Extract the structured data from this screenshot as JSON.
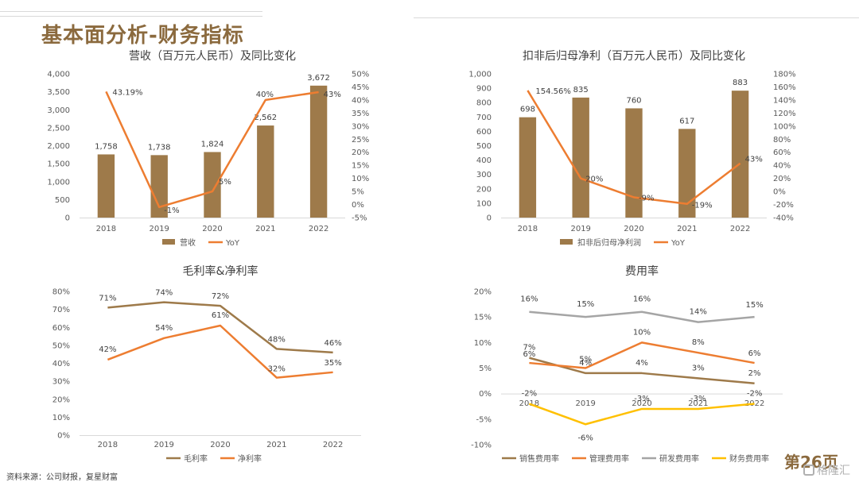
{
  "page": {
    "title": "基本面分析-财务指标",
    "source": "资料来源：公司财报，复星财富",
    "page_number": "第26页",
    "watermark": "格隆汇",
    "watermark_icon": "glh-logo-icon"
  },
  "chart_data": [
    {
      "id": "revenue",
      "type": "bar+line",
      "title": "营收（百万元人民币）及同比变化",
      "categories": [
        "2018",
        "2019",
        "2020",
        "2021",
        "2022"
      ],
      "bar_series": {
        "name": "营收",
        "values": [
          1758,
          1738,
          1824,
          2562,
          3672
        ],
        "labels": [
          "1,758",
          "1,738",
          "1,824",
          "2,562",
          "3,672"
        ],
        "color": "#9E7A4A"
      },
      "line_series": {
        "name": "YoY",
        "values": [
          43.19,
          -1,
          5,
          40,
          43
        ],
        "labels": [
          "43.19%",
          "-1%",
          "5%",
          "40%",
          "43%"
        ],
        "color": "#ED7D31"
      },
      "y_left": {
        "min": 0,
        "max": 4000,
        "ticks": [
          0,
          500,
          1000,
          1500,
          2000,
          2500,
          3000,
          3500,
          4000
        ],
        "tick_labels": [
          "0",
          "500",
          "1,000",
          "1,500",
          "2,000",
          "2,500",
          "3,000",
          "3,500",
          "4,000"
        ]
      },
      "y_right": {
        "min": -5,
        "max": 50,
        "ticks": [
          -5,
          0,
          5,
          10,
          15,
          20,
          25,
          30,
          35,
          40,
          45,
          50
        ],
        "tick_labels": [
          "-5%",
          "0%",
          "5%",
          "10%",
          "15%",
          "20%",
          "25%",
          "30%",
          "35%",
          "40%",
          "45%",
          "50%"
        ]
      },
      "legend": [
        {
          "name": "营收",
          "kind": "bar",
          "color": "#9E7A4A"
        },
        {
          "name": "YoY",
          "kind": "line",
          "color": "#ED7D31"
        }
      ],
      "legend_position": "bottom",
      "grid": false
    },
    {
      "id": "net_profit",
      "type": "bar+line",
      "title": "扣非后归母净利（百万元人民币）及同比变化",
      "categories": [
        "2018",
        "2019",
        "2020",
        "2021",
        "2022"
      ],
      "bar_series": {
        "name": "扣非后归母净利润",
        "values": [
          698,
          835,
          760,
          617,
          883
        ],
        "labels": [
          "698",
          "835",
          "760",
          "617",
          "883"
        ],
        "color": "#9E7A4A"
      },
      "line_series": {
        "name": "YoY",
        "values": [
          154.56,
          20,
          -9,
          -19,
          43
        ],
        "labels": [
          "154.56%",
          "20%",
          "-9%",
          "-19%",
          "43%"
        ],
        "color": "#ED7D31"
      },
      "y_left": {
        "min": 0,
        "max": 1000,
        "ticks": [
          0,
          100,
          200,
          300,
          400,
          500,
          600,
          700,
          800,
          900,
          1000
        ],
        "tick_labels": [
          "0",
          "100",
          "200",
          "300",
          "400",
          "500",
          "600",
          "700",
          "800",
          "900",
          "1,000"
        ]
      },
      "y_right": {
        "min": -40,
        "max": 180,
        "ticks": [
          -40,
          -20,
          0,
          20,
          40,
          60,
          80,
          100,
          120,
          140,
          160,
          180
        ],
        "tick_labels": [
          "-40%",
          "-20%",
          "0%",
          "20%",
          "40%",
          "60%",
          "80%",
          "100%",
          "120%",
          "140%",
          "160%",
          "180%"
        ]
      },
      "legend": [
        {
          "name": "扣非后归母净利润",
          "kind": "bar",
          "color": "#9E7A4A"
        },
        {
          "name": "YoY",
          "kind": "line",
          "color": "#ED7D31"
        }
      ],
      "legend_position": "bottom",
      "grid": false
    },
    {
      "id": "margins",
      "type": "line",
      "title": "毛利率&净利率",
      "categories": [
        "2018",
        "2019",
        "2020",
        "2021",
        "2022"
      ],
      "series": [
        {
          "name": "毛利率",
          "values": [
            71,
            74,
            72,
            48,
            46
          ],
          "labels": [
            "71%",
            "74%",
            "72%",
            "48%",
            "46%"
          ],
          "color": "#9E7A4A"
        },
        {
          "name": "净利率",
          "values": [
            42,
            54,
            61,
            32,
            35
          ],
          "labels": [
            "42%",
            "54%",
            "61%",
            "32%",
            "35%"
          ],
          "color": "#ED7D31"
        }
      ],
      "y_axis": {
        "min": 0,
        "max": 80,
        "ticks": [
          0,
          10,
          20,
          30,
          40,
          50,
          60,
          70,
          80
        ],
        "tick_labels": [
          "0%",
          "10%",
          "20%",
          "30%",
          "40%",
          "50%",
          "60%",
          "70%",
          "80%"
        ]
      },
      "legend_position": "bottom",
      "grid": false
    },
    {
      "id": "expense_ratio",
      "type": "line",
      "title": "费用率",
      "categories": [
        "2018",
        "2019",
        "2020",
        "2021",
        "2022"
      ],
      "series": [
        {
          "name": "销售费用率",
          "values": [
            7,
            4,
            4,
            3,
            2
          ],
          "labels": [
            "7%",
            "4%",
            "4%",
            "3%",
            "2%"
          ],
          "color": "#9E7A4A"
        },
        {
          "name": "管理费用率",
          "values": [
            6,
            5,
            10,
            8,
            6
          ],
          "labels": [
            "6%",
            "5%",
            "10%",
            "8%",
            "6%"
          ],
          "color": "#ED7D31"
        },
        {
          "name": "研发费用率",
          "values": [
            16,
            15,
            16,
            14,
            15
          ],
          "labels": [
            "16%",
            "15%",
            "16%",
            "14%",
            "15%"
          ],
          "color": "#A5A5A5"
        },
        {
          "name": "财务费用率",
          "values": [
            -2,
            -6,
            -3,
            -3,
            -2
          ],
          "labels": [
            "-2%",
            "-6%",
            "-3%",
            "-3%",
            "-2%"
          ],
          "color": "#FFC000"
        }
      ],
      "y_axis": {
        "min": -10,
        "max": 20,
        "ticks": [
          -10,
          -5,
          0,
          5,
          10,
          15,
          20
        ],
        "tick_labels": [
          "-10%",
          "-5%",
          "0%",
          "5%",
          "10%",
          "15%",
          "20%"
        ]
      },
      "legend_position": "bottom",
      "grid": false
    }
  ]
}
